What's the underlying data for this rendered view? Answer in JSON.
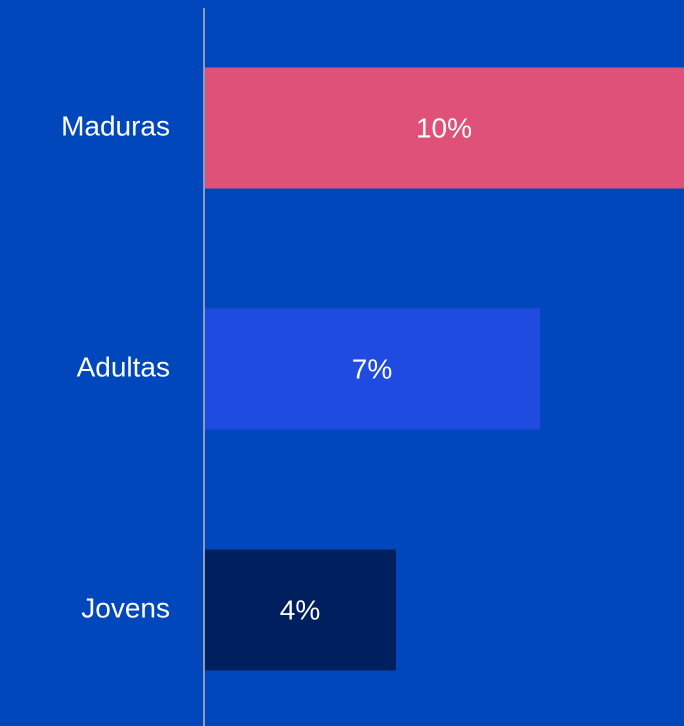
{
  "chart_data": {
    "type": "hbar",
    "categories": [
      "Maduras",
      "Adultas",
      "Jovens"
    ],
    "values": [
      10,
      7,
      4
    ],
    "value_labels": [
      "10%",
      "7%",
      "4%"
    ],
    "colors": [
      "#e0517a",
      "#1f4be0",
      "#001f5f"
    ],
    "xlim": [
      0,
      10
    ]
  }
}
